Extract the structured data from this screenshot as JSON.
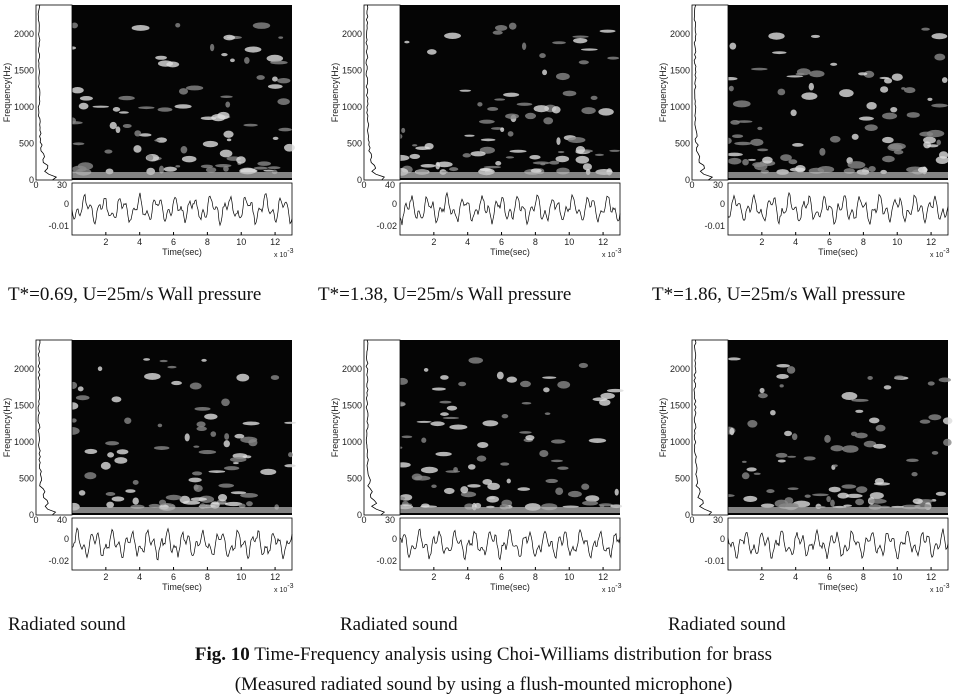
{
  "panels": [
    {
      "ylabel": "Frequency(Hz)",
      "yticks": [
        "0",
        "500",
        "1000",
        "1500",
        "2000"
      ],
      "side_ticks": [
        "0",
        "30"
      ],
      "signal_ticks": [
        "0",
        "-0.01"
      ],
      "xticks": [
        "2",
        "4",
        "6",
        "8",
        "10",
        "12"
      ],
      "xlabel": "Time(sec)",
      "multiplier": "x 10",
      "exponent": "-3",
      "caption": "T*=0.69, U=25m/s Wall pressure"
    },
    {
      "ylabel": "Frequency(Hz)",
      "yticks": [
        "0",
        "500",
        "1000",
        "1500",
        "2000"
      ],
      "side_ticks": [
        "0",
        "40"
      ],
      "signal_ticks": [
        "0",
        "-0.02"
      ],
      "xticks": [
        "2",
        "4",
        "6",
        "8",
        "10",
        "12"
      ],
      "xlabel": "Time(sec)",
      "multiplier": "x 10",
      "exponent": "-3",
      "caption": "T*=1.38, U=25m/s Wall pressure"
    },
    {
      "ylabel": "Frequency(Hz)",
      "yticks": [
        "0",
        "500",
        "1000",
        "1500",
        "2000"
      ],
      "side_ticks": [
        "0",
        "30"
      ],
      "signal_ticks": [
        "0",
        "-0.01"
      ],
      "xticks": [
        "2",
        "4",
        "6",
        "8",
        "10",
        "12"
      ],
      "xlabel": "Time(sec)",
      "multiplier": "x 10",
      "exponent": "-3",
      "caption": "T*=1.86, U=25m/s Wall pressure"
    },
    {
      "ylabel": "Frequency(Hz)",
      "yticks": [
        "0",
        "500",
        "1000",
        "1500",
        "2000"
      ],
      "side_ticks": [
        "0",
        "40"
      ],
      "signal_ticks": [
        "0",
        "-0.02"
      ],
      "xticks": [
        "2",
        "4",
        "6",
        "8",
        "10",
        "12"
      ],
      "xlabel": "Time(sec)",
      "multiplier": "x 10",
      "exponent": "-3",
      "caption": "Radiated sound"
    },
    {
      "ylabel": "Frequency(Hz)",
      "yticks": [
        "0",
        "500",
        "1000",
        "1500",
        "2000"
      ],
      "side_ticks": [
        "0",
        "30"
      ],
      "signal_ticks": [
        "0",
        "-0.02"
      ],
      "xticks": [
        "2",
        "4",
        "6",
        "8",
        "10",
        "12"
      ],
      "xlabel": "Time(sec)",
      "multiplier": "x 10",
      "exponent": "-3",
      "caption": "Radiated sound"
    },
    {
      "ylabel": "Frequency(Hz)",
      "yticks": [
        "0",
        "500",
        "1000",
        "1500",
        "2000"
      ],
      "side_ticks": [
        "0",
        "30"
      ],
      "signal_ticks": [
        "0",
        "-0.01"
      ],
      "xticks": [
        "2",
        "4",
        "6",
        "8",
        "10",
        "12"
      ],
      "xlabel": "Time(sec)",
      "multiplier": "x 10",
      "exponent": "-3",
      "caption": "Radiated sound"
    }
  ],
  "figure": {
    "label": "Fig. 10",
    "caption": "Time-Frequency analysis using Choi-Williams distribution for brass",
    "note": "(Measured radiated sound by using a flush-mounted microphone)"
  }
}
